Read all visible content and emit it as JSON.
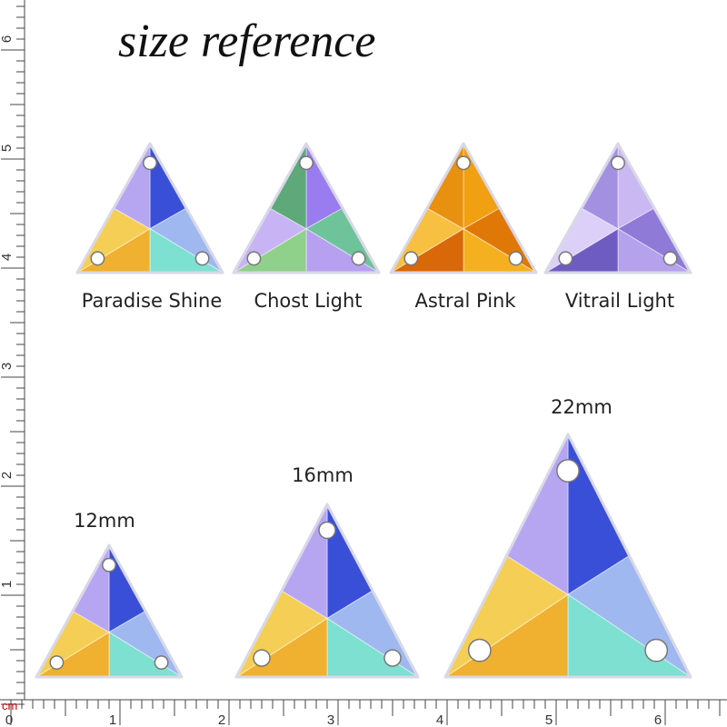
{
  "title": "size reference",
  "colors": [
    "Paradise Shine",
    "Chost Light",
    "Astral Pink",
    "Vitrail Light"
  ],
  "sizes": [
    "12mm",
    "16mm",
    "22mm"
  ],
  "ruler": {
    "unit": "cm",
    "bottom": [
      0,
      1,
      2,
      3,
      4,
      5,
      6
    ],
    "left": [
      1,
      2,
      3,
      4,
      5,
      6
    ]
  }
}
